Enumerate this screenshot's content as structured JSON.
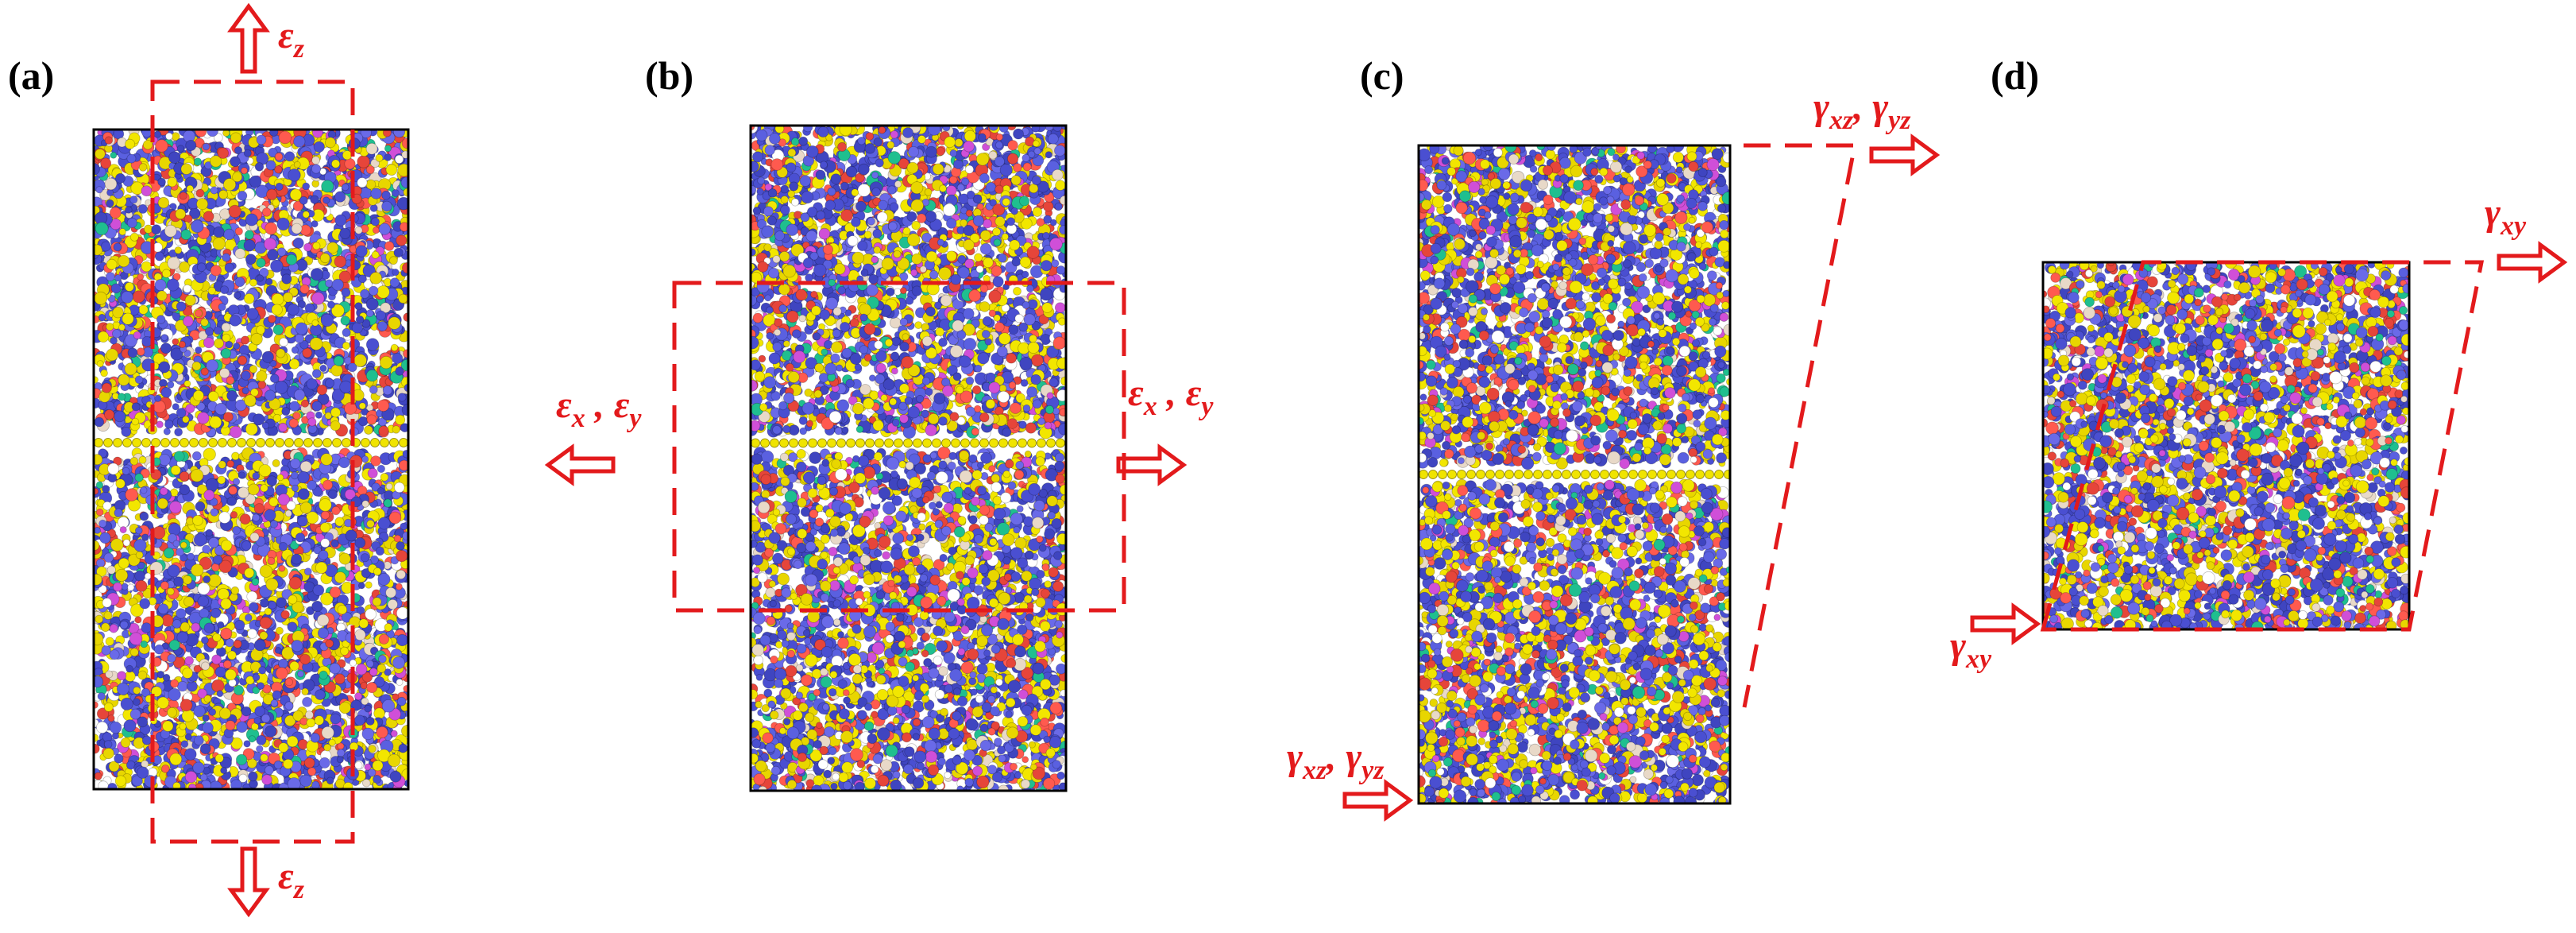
{
  "colors": {
    "accent": "#e31a1c",
    "box_edge": "#000000",
    "particles": [
      "#4a4fd1",
      "#5a60e0",
      "#3f45c0",
      "#f2e600",
      "#e8d600",
      "#ff5a4f",
      "#e6453a",
      "#d04fd8",
      "#1fbf8f",
      "#ffffff",
      "#e8d9c8",
      "#6a6ae8"
    ],
    "graphene": "#f0e400"
  },
  "panels": [
    {
      "id": "a",
      "label": "(a)"
    },
    {
      "id": "b",
      "label": "(b)"
    },
    {
      "id": "c",
      "label": "(c)"
    },
    {
      "id": "d",
      "label": "(d)"
    }
  ],
  "annotations": {
    "a_top": {
      "base": "ε",
      "sub": "z"
    },
    "a_bottom": {
      "base": "ε",
      "sub": "z"
    },
    "b_left": {
      "t1": "ε",
      "s1": "x",
      "sep": " , ",
      "t2": "ε",
      "s2": "y"
    },
    "b_right": {
      "t1": "ε",
      "s1": "x",
      "sep": " , ",
      "t2": "ε",
      "s2": "y"
    },
    "c_top": {
      "t1": "γ",
      "s1": "xz",
      "sep": ", ",
      "t2": "γ",
      "s2": "yz"
    },
    "c_bottom": {
      "t1": "γ",
      "s1": "xz",
      "sep": ", ",
      "t2": "γ",
      "s2": "yz"
    },
    "d_top": {
      "base": "γ",
      "sub": "xy"
    },
    "d_bottom": {
      "base": "γ",
      "sub": "xy"
    }
  },
  "icons": [
    "hollow-arrow-up-icon",
    "hollow-arrow-down-icon",
    "hollow-arrow-left-icon",
    "hollow-arrow-right-icon"
  ]
}
